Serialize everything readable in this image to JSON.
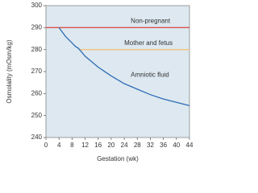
{
  "chart_data": {
    "type": "line",
    "xlabel": "Gestation (wk)",
    "ylabel": "Osmolality (mOsm/kg)",
    "xlim": [
      0,
      44
    ],
    "xticks": [
      0,
      4,
      8,
      12,
      16,
      20,
      24,
      28,
      32,
      36,
      40,
      44
    ],
    "ylim": [
      240,
      300
    ],
    "yticks": [
      240,
      250,
      260,
      270,
      280,
      290,
      300
    ],
    "series": [
      {
        "name": "Non-pregnant",
        "color": "#d9534f",
        "x": [
          0,
          44
        ],
        "values": [
          290,
          290
        ]
      },
      {
        "name": "Mother and fetus",
        "color": "#f2c27a",
        "x": [
          10,
          44
        ],
        "values": [
          280,
          280
        ]
      },
      {
        "name": "Amniotic fluid",
        "color": "#2f6db5",
        "x": [
          4,
          6,
          8,
          9,
          10,
          12,
          16,
          20,
          24,
          28,
          32,
          36,
          40,
          44
        ],
        "values": [
          290,
          286,
          283,
          281.5,
          280.5,
          277,
          272,
          268,
          264.5,
          262,
          259.5,
          257.5,
          256,
          254.5
        ]
      }
    ]
  }
}
